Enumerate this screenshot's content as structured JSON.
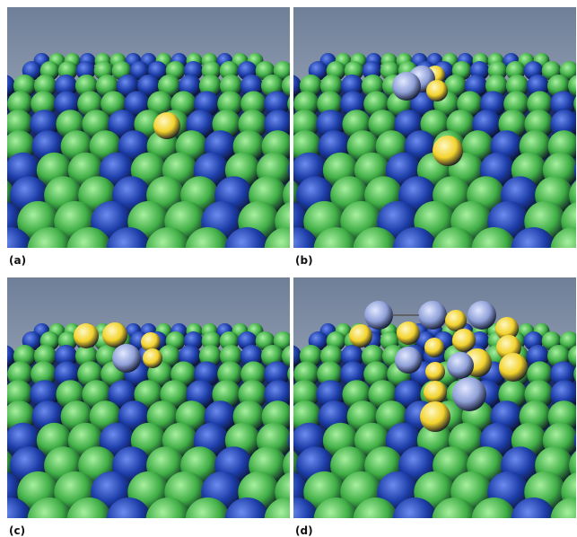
{
  "panels": [
    {
      "id": "a",
      "label": "(a)"
    },
    {
      "id": "b",
      "label": "(b)"
    },
    {
      "id": "c",
      "label": "(c)"
    },
    {
      "id": "d",
      "label": "(d)"
    }
  ],
  "colors": {
    "substrate_dark": "#1c3da8",
    "substrate_green": "#3fae45",
    "adatom_yellow": "#f2d22b",
    "adatom_lavender": "#8fa0d8",
    "sky_top": "#6f7f98",
    "sky_bottom": "#c3ccd9"
  },
  "atom_kinds": [
    "blue-substrate-atom",
    "green-substrate-atom",
    "yellow-adatom",
    "lavender-atom"
  ]
}
